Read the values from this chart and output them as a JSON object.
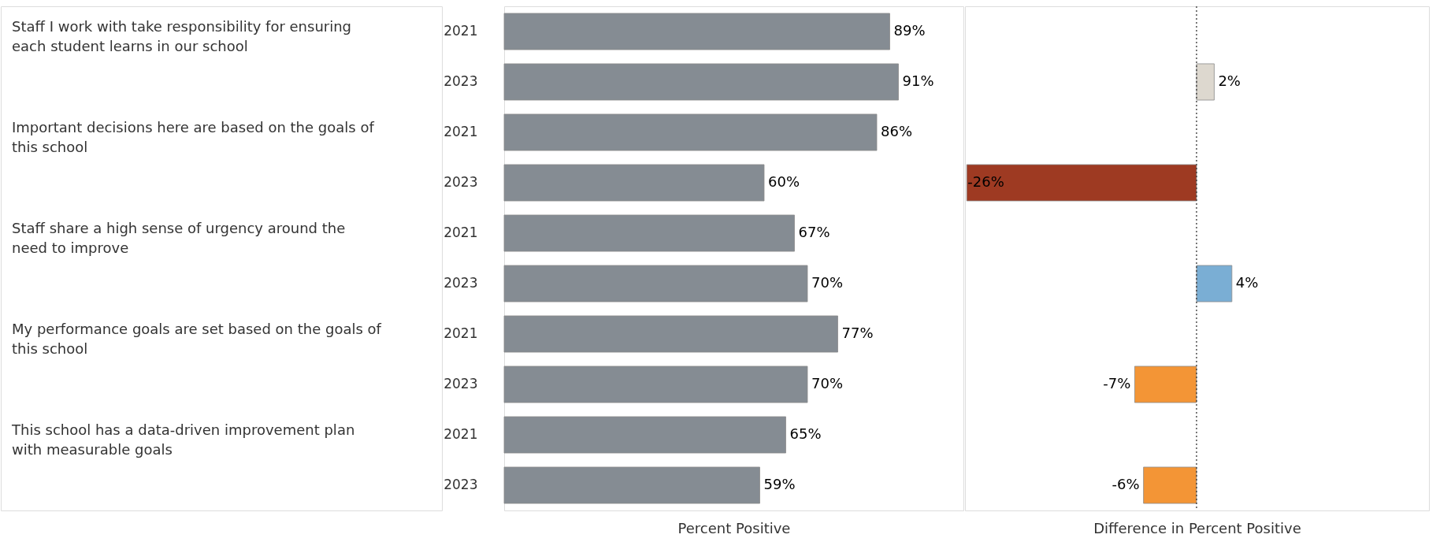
{
  "chart_data": [
    {
      "type": "bar",
      "orientation": "horizontal",
      "xlabel": "Percent Positive",
      "categories": [
        "2021",
        "2023",
        "2021",
        "2023",
        "2021",
        "2023",
        "2021",
        "2023",
        "2021",
        "2023"
      ],
      "values": [
        89,
        91,
        86,
        60,
        67,
        70,
        77,
        70,
        65,
        59
      ],
      "color": "#858c93",
      "value_labels": [
        "89%",
        "91%",
        "86%",
        "60%",
        "67%",
        "70%",
        "77%",
        "70%",
        "65%",
        "59%"
      ],
      "xlim": [
        0,
        106
      ],
      "tick_labels": "y",
      "annotations": [
        "Staff I work with take responsibility for ensuring each student learns in our school",
        "Important decisions here are based on the goals of this school",
        "Staff share a high sense of urgency around the need to improve",
        "My performance goals are set based on the goals of this school",
        "This school has a data-driven improvement plan with measurable goals"
      ]
    },
    {
      "type": "bar",
      "orientation": "horizontal",
      "xlabel": "Difference in Percent Positive",
      "categories": [
        "2021",
        "2023",
        "2021",
        "2023",
        "2021",
        "2023",
        "2021",
        "2023",
        "2021",
        "2023"
      ],
      "values": [
        null,
        2,
        null,
        -26,
        null,
        4,
        null,
        -7,
        null,
        -6
      ],
      "colors": [
        null,
        "#ddd8cf",
        null,
        "#9e3a22",
        null,
        "#7aaed4",
        null,
        "#f39536",
        null,
        "#f39536"
      ],
      "value_labels": [
        null,
        "2%",
        null,
        "-26%",
        null,
        "4%",
        null,
        "-7%",
        null,
        "-6%"
      ],
      "xlim": [
        -26.2,
        26.3
      ],
      "tick_labels": false,
      "ref_lines": [
        {
          "axis": "x",
          "value": 0,
          "color": "#333333",
          "line_style": "dotted"
        }
      ]
    }
  ]
}
